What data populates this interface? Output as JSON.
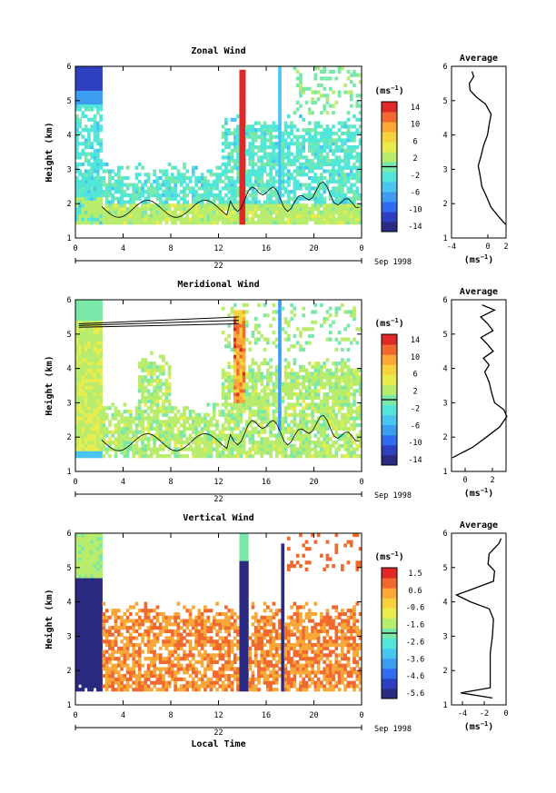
{
  "figure": {
    "xlabel": "Local Time",
    "date_label": "Sep 1998",
    "day_label": "22",
    "colorbar_unit": "(ms$^{-1}$)",
    "colorbar_unit_text": "(ms",
    "colorbar_unit_sup": "−1",
    "avg_title": "Average"
  },
  "chart_data": [
    {
      "type": "heatmap",
      "title": "Zonal Wind",
      "ylabel": "Height (km)",
      "xlim": [
        0,
        24
      ],
      "ylim": [
        1,
        6
      ],
      "x_ticks": [
        "0",
        "4",
        "8",
        "12",
        "16",
        "20",
        "0"
      ],
      "y_ticks": [
        "1",
        "2",
        "3",
        "4",
        "5",
        "6"
      ],
      "colorbar": {
        "ticks": [
          "14",
          "10",
          "6",
          "2",
          "-2",
          "-6",
          "-10",
          "-14"
        ],
        "range": [
          -16,
          16
        ],
        "colormap": [
          "#2a2a80",
          "#2e3fc0",
          "#2f6cf0",
          "#3c9cf0",
          "#49c6f0",
          "#52e6d8",
          "#7ae8a8",
          "#b8ec6c",
          "#e8ec4c",
          "#f8d23c",
          "#f8a838",
          "#f06a30",
          "#e02828"
        ]
      },
      "average": {
        "xlim": [
          -4,
          2
        ],
        "x_ticks": [
          "-4",
          "0",
          "2"
        ],
        "xlabel": "(ms$^{-1}$)",
        "profile": [
          [
            1.4,
            2
          ],
          [
            1.6,
            1.2
          ],
          [
            1.9,
            0.4
          ],
          [
            2.2,
            -0.2
          ],
          [
            2.5,
            -0.6
          ],
          [
            2.8,
            -0.9
          ],
          [
            3.1,
            -1.0
          ],
          [
            3.4,
            -0.8
          ],
          [
            3.7,
            -0.4
          ],
          [
            4.0,
            -0.1
          ],
          [
            4.3,
            0.2
          ],
          [
            4.6,
            0.3
          ],
          [
            4.9,
            -0.2
          ],
          [
            5.1,
            -1.3
          ],
          [
            5.3,
            -1.9
          ],
          [
            5.5,
            -2.1
          ],
          [
            5.7,
            -1.5
          ],
          [
            5.85,
            -1.8
          ]
        ]
      }
    },
    {
      "type": "heatmap",
      "title": "Meridional Wind",
      "ylabel": "Height (km)",
      "xlim": [
        0,
        24
      ],
      "ylim": [
        1,
        6
      ],
      "x_ticks": [
        "0",
        "4",
        "8",
        "12",
        "16",
        "20",
        "0"
      ],
      "y_ticks": [
        "1",
        "2",
        "3",
        "4",
        "5",
        "6"
      ],
      "colorbar": {
        "ticks": [
          "14",
          "10",
          "6",
          "2",
          "-2",
          "-6",
          "-10",
          "-14"
        ],
        "range": [
          -16,
          16
        ],
        "colormap": [
          "#2a2a80",
          "#2e3fc0",
          "#2f6cf0",
          "#3c9cf0",
          "#49c6f0",
          "#52e6d8",
          "#7ae8a8",
          "#b8ec6c",
          "#e8ec4c",
          "#f8d23c",
          "#f8a838",
          "#f06a30",
          "#e02828"
        ]
      },
      "average": {
        "xlim": [
          -1,
          3
        ],
        "x_ticks": [
          "0",
          "2"
        ],
        "xlabel": "(ms$^{-1}$)",
        "profile": [
          [
            1.4,
            -0.9
          ],
          [
            1.7,
            0.5
          ],
          [
            2.0,
            1.6
          ],
          [
            2.3,
            2.5
          ],
          [
            2.6,
            3.1
          ],
          [
            2.8,
            2.8
          ],
          [
            3.0,
            2.2
          ],
          [
            3.3,
            1.9
          ],
          [
            3.6,
            1.8
          ],
          [
            3.9,
            1.4
          ],
          [
            4.1,
            1.8
          ],
          [
            4.3,
            1.3
          ],
          [
            4.5,
            2.1
          ],
          [
            4.7,
            1.6
          ],
          [
            4.9,
            1.2
          ],
          [
            5.1,
            2.0
          ],
          [
            5.3,
            1.7
          ],
          [
            5.5,
            1.1
          ],
          [
            5.7,
            2.2
          ],
          [
            5.85,
            1.2
          ]
        ]
      }
    },
    {
      "type": "heatmap",
      "title": "Vertical Wind",
      "ylabel": "Height (km)",
      "xlim": [
        0,
        24
      ],
      "ylim": [
        1,
        6
      ],
      "x_ticks": [
        "0",
        "4",
        "8",
        "12",
        "16",
        "20",
        "0"
      ],
      "y_ticks": [
        "1",
        "2",
        "3",
        "4",
        "5",
        "6"
      ],
      "colorbar": {
        "ticks": [
          "1.5",
          "0.6",
          "-0.6",
          "-1.6",
          "-2.6",
          "-3.6",
          "-4.6",
          "-5.6"
        ],
        "range": [
          -6,
          2
        ],
        "colormap": [
          "#2a2a80",
          "#2e3fc0",
          "#2f6cf0",
          "#3c9cf0",
          "#49c6f0",
          "#52e6d8",
          "#7ae8a8",
          "#b8ec6c",
          "#e8ec4c",
          "#f8d23c",
          "#f8a838",
          "#f06a30",
          "#e02828"
        ]
      },
      "average": {
        "xlim": [
          -5,
          0
        ],
        "x_ticks": [
          "-4",
          "-2",
          "0"
        ],
        "xlabel": "(ms$^{-1}$)",
        "profile": [
          [
            1.2,
            -1.2
          ],
          [
            1.35,
            -4.2
          ],
          [
            1.5,
            -1.4
          ],
          [
            2.0,
            -1.5
          ],
          [
            2.5,
            -1.4
          ],
          [
            3.0,
            -1.3
          ],
          [
            3.5,
            -1.1
          ],
          [
            3.8,
            -1.6
          ],
          [
            4.0,
            -3.2
          ],
          [
            4.2,
            -4.6
          ],
          [
            4.4,
            -2.8
          ],
          [
            4.6,
            -1.2
          ],
          [
            4.9,
            -1.0
          ],
          [
            5.1,
            -1.7
          ],
          [
            5.4,
            -1.5
          ],
          [
            5.7,
            -0.7
          ],
          [
            5.85,
            -0.4
          ]
        ]
      }
    }
  ]
}
